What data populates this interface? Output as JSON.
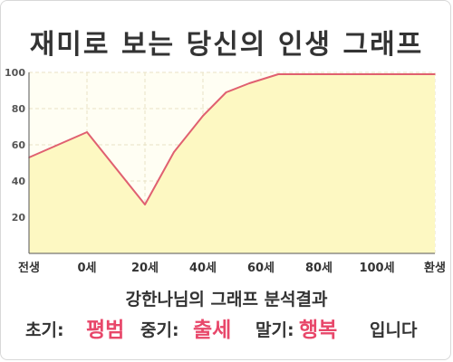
{
  "title": "재미로 보는 당신의 인생 그래프",
  "chart_data": {
    "type": "area",
    "title": "재미로 보는 당신의 인생 그래프",
    "x_tick_labels": [
      "전생",
      "0세",
      "20세",
      "40세",
      "60세",
      "80세",
      "100세",
      "환생"
    ],
    "x_tick_values": [
      -20,
      0,
      20,
      40,
      60,
      80,
      100,
      120
    ],
    "xlim": [
      -20,
      120
    ],
    "y_tick_labels": [
      "20",
      "40",
      "60",
      "80",
      "100"
    ],
    "ylim": [
      0,
      100
    ],
    "grid": true,
    "series": [
      {
        "x": [
          -20,
          0,
          20,
          30,
          40,
          48,
          56,
          66,
          80,
          100,
          120
        ],
        "y": [
          53,
          67,
          27,
          56,
          76,
          89,
          94,
          99,
          99,
          99,
          99
        ]
      }
    ],
    "colors": {
      "line": "#e06070",
      "fill": "#fdf8c2",
      "plot_bg": "#fffef3",
      "grid": "#e9e2c4"
    }
  },
  "summary": "강한나님의 그래프 분석결과",
  "phases": {
    "early_label": "초기:",
    "early_value": "평범",
    "mid_label": "중기:",
    "mid_value": "출세",
    "late_label": "말기:",
    "late_value": "행복",
    "ending": "입니다"
  }
}
